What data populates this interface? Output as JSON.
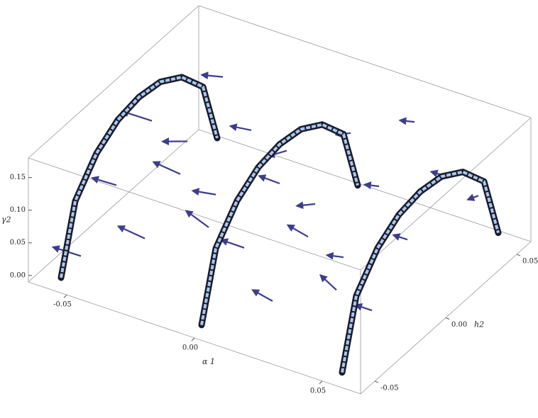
{
  "chart_data": {
    "type": "quiver3d",
    "xlabel": "α 1",
    "ylabel": "h2",
    "zlabel": "γ2",
    "xlim": [
      -0.065,
      0.065
    ],
    "ylim": [
      -0.06,
      0.06
    ],
    "zlim": [
      -0.01,
      0.18
    ],
    "xticks": [
      -0.05,
      {
        "value": 0,
        "label": "0.00"
      },
      0.05
    ],
    "yticks": [
      -0.05,
      {
        "value": 0,
        "label": "0.00"
      },
      0.05
    ],
    "zticks": [
      {
        "value": 0,
        "label": "0.00"
      },
      0.05,
      {
        "value": 0.1,
        "label": "0.10"
      },
      0.15
    ],
    "arrow_color": "#3d3d8c",
    "vectors": {
      "x": [
        -0.05,
        -0.05,
        -0.05,
        -0.05,
        -0.05,
        -0.025,
        -0.025,
        -0.025,
        -0.025,
        -0.025,
        0,
        0,
        0,
        0,
        0,
        0.025,
        0.025,
        0.025,
        0.025,
        0.025,
        0.05,
        0.05,
        0.05,
        0.05,
        0.05
      ],
      "y": [
        -0.05,
        -0.025,
        0,
        0.025,
        0.05,
        -0.05,
        -0.025,
        0,
        0.025,
        0.05,
        -0.05,
        -0.025,
        0,
        0.025,
        0.05,
        -0.05,
        -0.025,
        0,
        0.025,
        0.05,
        -0.05,
        -0.025,
        0,
        0.025,
        0.05
      ],
      "z": [
        0.03,
        0.09,
        0.14,
        0.06,
        0.11,
        0.09,
        0.14,
        0.06,
        0.11,
        0.03,
        0.14,
        0.06,
        0.11,
        0.03,
        0.09,
        0.06,
        0.11,
        0.03,
        0.09,
        0.14,
        0.11,
        0.03,
        0.09,
        0.14,
        0.06
      ],
      "u": [
        -0.012,
        -0.01,
        -0.011,
        -0.008,
        -0.006,
        -0.012,
        -0.011,
        -0.009,
        -0.007,
        -0.005,
        -0.011,
        -0.01,
        -0.008,
        -0.006,
        -0.004,
        -0.01,
        -0.009,
        -0.007,
        -0.005,
        -0.004,
        -0.009,
        -0.008,
        -0.006,
        -0.004,
        -0.003
      ],
      "v": [
        0.002,
        0.001,
        -0.001,
        -0.003,
        -0.004,
        0.003,
        0.001,
        0,
        -0.002,
        -0.004,
        0.004,
        0.002,
        0,
        -0.002,
        -0.003,
        0.004,
        0.002,
        0.001,
        -0.001,
        -0.003,
        0.005,
        0.003,
        0.001,
        -0.001,
        -0.002
      ],
      "w": [
        -0.006,
        -0.004,
        0.002,
        -0.005,
        0.003,
        -0.003,
        0.002,
        -0.006,
        0.001,
        -0.007,
        0.003,
        -0.005,
        0.001,
        -0.007,
        -0.002,
        -0.004,
        0.002,
        -0.008,
        -0.002,
        0.003,
        0.001,
        -0.008,
        -0.003,
        0.002,
        -0.006
      ]
    },
    "series": [
      {
        "color": "#a8c8e8",
        "alpha1": -0.055,
        "h2": [
          -0.055,
          -0.045,
          -0.03,
          -0.015,
          0,
          0.015,
          0.03,
          0.045,
          0.055
        ],
        "values": [
          0,
          0.098,
          0.142,
          0.164,
          0.17,
          0.164,
          0.142,
          0.098,
          0
        ]
      },
      {
        "color": "#a8c8e8",
        "alpha1": 0,
        "h2": [
          -0.055,
          -0.045,
          -0.03,
          -0.015,
          0,
          0.015,
          0.03,
          0.045,
          0.055
        ],
        "values": [
          0,
          0.098,
          0.142,
          0.164,
          0.17,
          0.164,
          0.142,
          0.098,
          0
        ]
      },
      {
        "color": "#a8c8e8",
        "alpha1": 0.055,
        "h2": [
          -0.055,
          -0.045,
          -0.03,
          -0.015,
          0,
          0.015,
          0.03,
          0.045,
          0.055
        ],
        "values": [
          0,
          0.098,
          0.142,
          0.164,
          0.17,
          0.164,
          0.142,
          0.098,
          0
        ]
      }
    ]
  }
}
